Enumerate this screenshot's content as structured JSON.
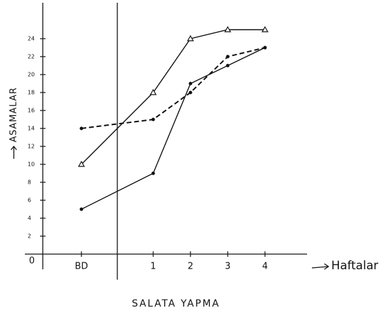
{
  "chart_data": {
    "type": "line",
    "title": "SALATA YAPMA",
    "y_label": "ASAMALAR",
    "x_label": "Haftalar",
    "origin_label": "0",
    "categories": [
      "BD",
      "1",
      "2",
      "3",
      "4"
    ],
    "series": [
      {
        "marker": "triangle",
        "dash": false,
        "color": "#111111",
        "values": [
          10,
          18,
          24,
          25,
          25
        ]
      },
      {
        "marker": "dot",
        "dash": true,
        "color": "#111111",
        "values": [
          14,
          15,
          18,
          22,
          23
        ]
      },
      {
        "marker": "dot",
        "dash": false,
        "color": "#111111",
        "values": [
          5,
          9,
          19,
          21,
          23
        ]
      }
    ],
    "ylim": [
      0,
      28
    ],
    "yticks": [
      2,
      4,
      6,
      8,
      10,
      12,
      14,
      16,
      18,
      20,
      22,
      24
    ]
  }
}
